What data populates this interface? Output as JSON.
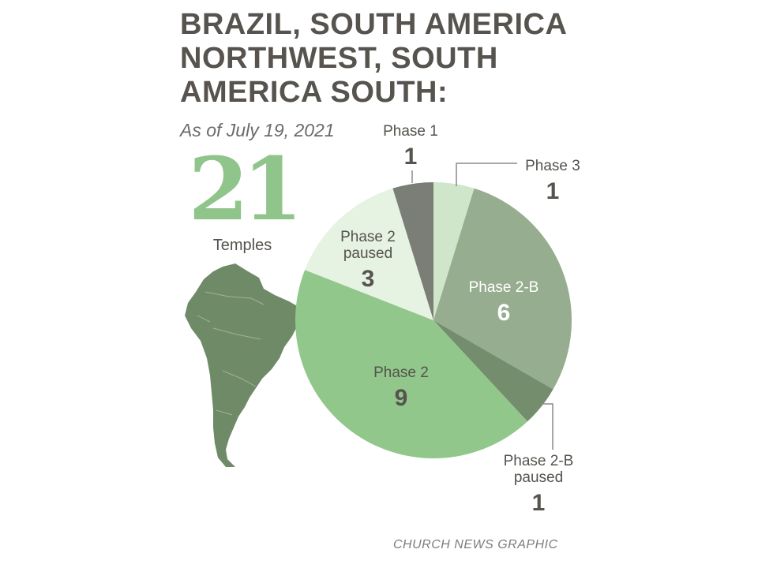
{
  "chart_data": {
    "type": "pie",
    "title": [
      "BRAZIL, SOUTH AMERICA",
      "NORTHWEST, SOUTH",
      "AMERICA SOUTH:"
    ],
    "subtitle": "As of July 19, 2021",
    "total": {
      "value": "21",
      "label": "Temples"
    },
    "categories": [
      "Phase 3",
      "Phase 2-B",
      "Phase 2-B paused",
      "Phase 2",
      "Phase 2 paused",
      "Phase 1"
    ],
    "values": [
      1,
      6,
      1,
      9,
      3,
      1
    ],
    "labels": [
      {
        "lines": [
          "Phase 3"
        ],
        "value": "1"
      },
      {
        "lines": [
          "Phase 2-B"
        ],
        "value": "6"
      },
      {
        "lines": [
          "Phase 2-B",
          "paused"
        ],
        "value": "1"
      },
      {
        "lines": [
          "Phase 2"
        ],
        "value": "9"
      },
      {
        "lines": [
          "Phase 2",
          "paused"
        ],
        "value": "3"
      },
      {
        "lines": [
          "Phase 1"
        ],
        "value": "1"
      }
    ],
    "colors": [
      "#cfe6cb",
      "#97ad8f",
      "#738d6d",
      "#91c78a",
      "#e6f2e2",
      "#7b7e76"
    ],
    "credit": "CHURCH NEWS GRAPHIC"
  }
}
